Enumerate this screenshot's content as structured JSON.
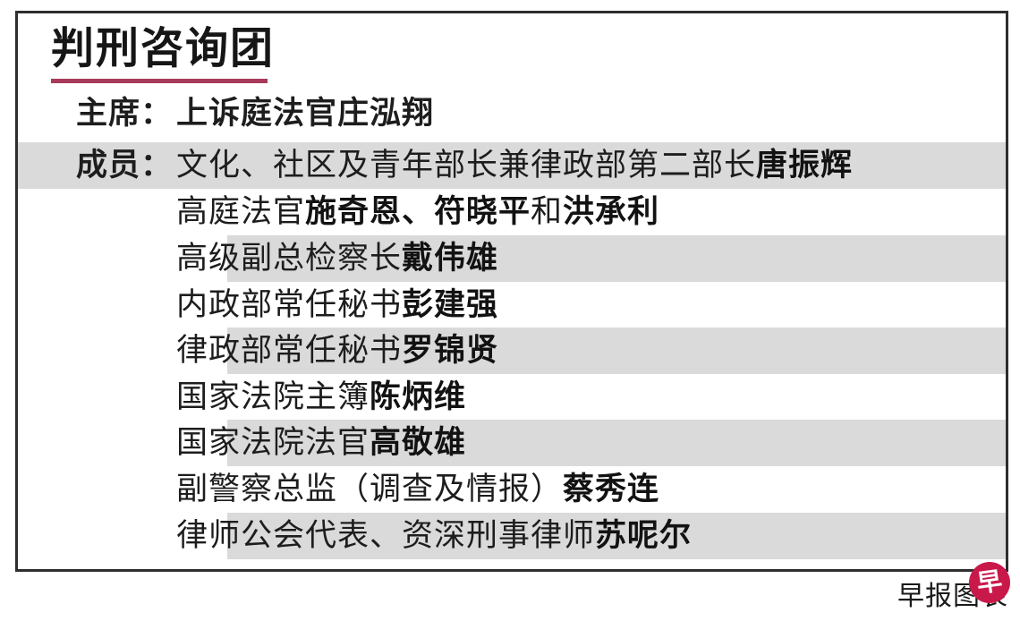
{
  "panel": {
    "title": "判刑咨询团",
    "chairman": {
      "label": "主席：",
      "name": "上诉庭法官庄泓翔"
    },
    "members_label": "成员：",
    "members": [
      {
        "segments": [
          {
            "text": "文化、社区及青年部长兼律政部第二部长",
            "bold": false
          },
          {
            "text": "唐振辉",
            "bold": true
          }
        ]
      },
      {
        "segments": [
          {
            "text": "高庭法官",
            "bold": false
          },
          {
            "text": "施奇恩、符晓平",
            "bold": true
          },
          {
            "text": "和",
            "bold": false
          },
          {
            "text": "洪承利",
            "bold": true
          }
        ]
      },
      {
        "segments": [
          {
            "text": "高级副总检察长",
            "bold": false
          },
          {
            "text": "戴伟雄",
            "bold": true
          }
        ]
      },
      {
        "segments": [
          {
            "text": "内政部常任秘书",
            "bold": false
          },
          {
            "text": "彭建强",
            "bold": true
          }
        ]
      },
      {
        "segments": [
          {
            "text": "律政部常任秘书",
            "bold": false
          },
          {
            "text": "罗锦贤",
            "bold": true
          }
        ]
      },
      {
        "segments": [
          {
            "text": "国家法院主簿",
            "bold": false
          },
          {
            "text": "陈炳维",
            "bold": true
          }
        ]
      },
      {
        "segments": [
          {
            "text": "国家法院法官",
            "bold": false
          },
          {
            "text": "高敬雄",
            "bold": true
          }
        ]
      },
      {
        "segments": [
          {
            "text": "副警察总监（调查及情报）",
            "bold": false
          },
          {
            "text": "蔡秀连",
            "bold": true
          }
        ]
      },
      {
        "segments": [
          {
            "text": "律师公会代表、资深刑事律师",
            "bold": false
          },
          {
            "text": "苏呢尔",
            "bold": true
          }
        ]
      }
    ]
  },
  "credit": {
    "text": "早报图表",
    "logo_char": "早"
  },
  "colors": {
    "accent": "#a83a5a",
    "band": "#dadada",
    "logo-red": "#c9184a",
    "frame": "#2e2e2e",
    "ink": "#1d1d1d"
  }
}
